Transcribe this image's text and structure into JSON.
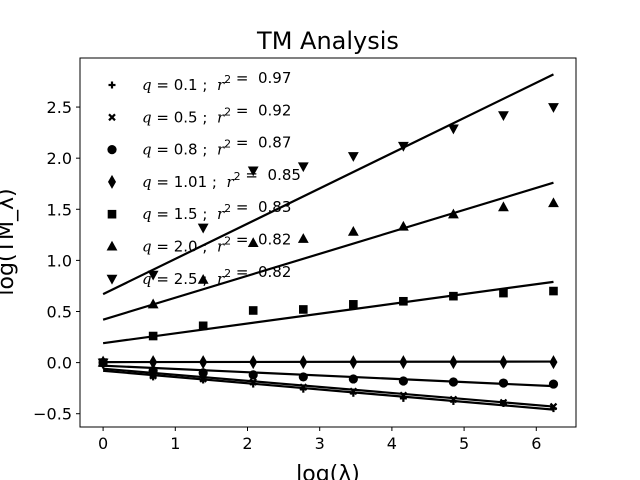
{
  "chart_data": {
    "type": "scatter",
    "title": "TM Analysis",
    "xlabel": "log(λ)",
    "ylabel": "log(TM_λ)",
    "xlim": [
      -0.32,
      6.55
    ],
    "ylim": [
      -0.63,
      2.98
    ],
    "xticks": [
      0,
      1,
      2,
      3,
      4,
      5,
      6
    ],
    "yticks": [
      -0.5,
      0.0,
      0.5,
      1.0,
      1.5,
      2.0,
      2.5
    ],
    "ytick_labels": [
      "−0.5",
      "0.0",
      "0.5",
      "1.0",
      "1.5",
      "2.0",
      "2.5"
    ],
    "legend_position": "upper-left",
    "x": [
      0,
      0.693,
      1.386,
      2.079,
      2.773,
      3.466,
      4.159,
      4.852,
      5.545,
      6.238
    ],
    "series": [
      {
        "q": "0.1",
        "r2": "0.97",
        "marker": "plus",
        "values": [
          0.0,
          -0.14,
          -0.17,
          -0.21,
          -0.26,
          -0.3,
          -0.35,
          -0.38,
          -0.4,
          -0.45
        ],
        "fit": [
          -0.08,
          -0.46
        ]
      },
      {
        "q": "0.5",
        "r2": "0.92",
        "marker": "x",
        "values": [
          0.0,
          -0.13,
          -0.16,
          -0.19,
          -0.24,
          -0.28,
          -0.32,
          -0.36,
          -0.39,
          -0.43
        ],
        "fit": [
          -0.06,
          -0.43
        ]
      },
      {
        "q": "0.8",
        "r2": "0.87",
        "marker": "circle",
        "values": [
          0.0,
          -0.08,
          -0.1,
          -0.12,
          -0.14,
          -0.16,
          -0.18,
          -0.19,
          -0.2,
          -0.21
        ],
        "fit": [
          -0.03,
          -0.23
        ]
      },
      {
        "q": "1.01",
        "r2": "0.85",
        "marker": "thin-diamond",
        "values": [
          0.0,
          0.005,
          0.005,
          0.005,
          0.005,
          0.005,
          0.005,
          0.005,
          0.005,
          0.005
        ],
        "fit": [
          0.005,
          0.01
        ]
      },
      {
        "q": "1.5",
        "r2": "0.83",
        "marker": "square",
        "values": [
          0.0,
          0.26,
          0.36,
          0.51,
          0.52,
          0.57,
          0.6,
          0.65,
          0.68,
          0.7
        ],
        "fit": [
          0.19,
          0.79
        ]
      },
      {
        "q": "2.0",
        "r2": "0.82",
        "marker": "triangle-up",
        "values": [
          0.0,
          0.57,
          0.81,
          1.17,
          1.21,
          1.28,
          1.33,
          1.45,
          1.52,
          1.56
        ],
        "fit": [
          0.42,
          1.76
        ]
      },
      {
        "q": "2.5",
        "r2": "0.82",
        "marker": "triangle-down",
        "values": [
          0.0,
          0.86,
          1.32,
          1.88,
          1.92,
          2.02,
          2.12,
          2.29,
          2.42,
          2.5
        ],
        "fit": [
          0.67,
          2.82
        ]
      }
    ]
  }
}
